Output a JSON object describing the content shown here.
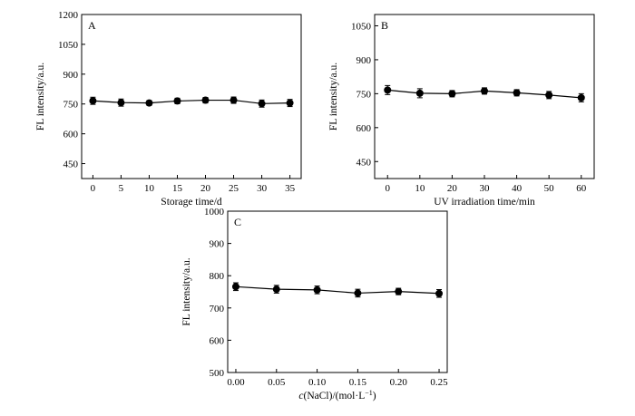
{
  "chart_data": [
    {
      "panel": "A",
      "type": "line",
      "xlabel": "Storage time/d",
      "ylabel": "FL intensity/a.u.",
      "x": [
        0,
        5,
        10,
        15,
        20,
        25,
        30,
        35
      ],
      "xticks": [
        "0",
        "5",
        "10",
        "15",
        "20",
        "25",
        "30",
        "35"
      ],
      "xlim": [
        -2,
        37
      ],
      "y": [
        766,
        757,
        755,
        765,
        769,
        769,
        752,
        755
      ],
      "yerr": [
        18,
        18,
        12,
        14,
        14,
        16,
        18,
        18
      ],
      "ylim": [
        375,
        1200
      ],
      "yticks": [
        450,
        600,
        750,
        900,
        1050,
        1200
      ],
      "yticklabels": [
        "450",
        "600",
        "750",
        "900",
        "1050",
        "1200"
      ],
      "grid": false,
      "marker": "filled-circle"
    },
    {
      "panel": "B",
      "type": "line",
      "xlabel": "UV irradiation time/min",
      "ylabel": "FL intensity/a.u.",
      "x": [
        0,
        10,
        20,
        30,
        40,
        50,
        60
      ],
      "xticks": [
        "0",
        "10",
        "20",
        "30",
        "40",
        "50",
        "60"
      ],
      "xlim": [
        -4,
        64
      ],
      "y": [
        766,
        752,
        750,
        762,
        754,
        744,
        732
      ],
      "yerr": [
        20,
        20,
        14,
        14,
        14,
        16,
        18
      ],
      "ylim": [
        375,
        1100
      ],
      "yticks": [
        450,
        600,
        750,
        900,
        1050
      ],
      "yticklabels": [
        "450",
        "600",
        "750",
        "900",
        "1050"
      ],
      "grid": false,
      "marker": "filled-circle"
    },
    {
      "panel": "C",
      "type": "line",
      "xlabel_parts": [
        "c",
        "(NaCl)/(mol·L",
        "−1",
        ")"
      ],
      "ylabel": "FL intensity/a.u.",
      "x": [
        0.0,
        0.05,
        0.1,
        0.15,
        0.2,
        0.25
      ],
      "xticks": [
        "0.00",
        "0.05",
        "0.10",
        "0.15",
        "0.20",
        "0.25"
      ],
      "xlim": [
        -0.01,
        0.26
      ],
      "y": [
        766,
        758,
        756,
        746,
        751,
        745
      ],
      "yerr": [
        12,
        12,
        12,
        12,
        10,
        12
      ],
      "ylim": [
        500,
        1000
      ],
      "yticks": [
        500,
        600,
        700,
        800,
        900,
        1000
      ],
      "yticklabels": [
        "500",
        "600",
        "700",
        "800",
        "900",
        "1000"
      ],
      "grid": false,
      "marker": "filled-circle"
    }
  ]
}
